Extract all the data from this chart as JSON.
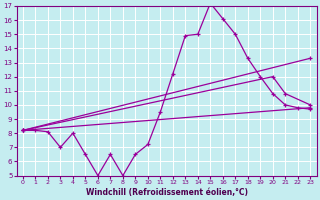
{
  "xlabel": "Windchill (Refroidissement éolien,°C)",
  "xlim": [
    -0.5,
    23.5
  ],
  "ylim": [
    5,
    17
  ],
  "yticks": [
    5,
    6,
    7,
    8,
    9,
    10,
    11,
    12,
    13,
    14,
    15,
    16,
    17
  ],
  "xticks": [
    0,
    1,
    2,
    3,
    4,
    5,
    6,
    7,
    8,
    9,
    10,
    11,
    12,
    13,
    14,
    15,
    16,
    17,
    18,
    19,
    20,
    21,
    22,
    23
  ],
  "bg_color": "#c5edf0",
  "line_color": "#9b009b",
  "grid_color": "#ffffff",
  "series": [
    {
      "x": [
        0,
        1,
        2,
        3,
        4,
        5,
        6,
        7,
        8,
        9,
        10,
        11,
        12,
        13,
        14,
        15,
        16,
        17,
        18,
        19,
        20,
        21,
        22,
        23
      ],
      "y": [
        8.2,
        8.2,
        8.1,
        7.0,
        8.0,
        6.5,
        5.0,
        6.5,
        5.0,
        6.5,
        7.2,
        9.5,
        12.2,
        14.9,
        15.0,
        17.2,
        16.1,
        15.0,
        13.3,
        12.0,
        10.8,
        10.0,
        9.8,
        9.7
      ]
    },
    {
      "x": [
        0,
        23
      ],
      "y": [
        8.2,
        13.3
      ]
    },
    {
      "x": [
        0,
        20,
        21,
        23
      ],
      "y": [
        8.2,
        12.0,
        10.8,
        10.0
      ]
    },
    {
      "x": [
        0,
        23
      ],
      "y": [
        8.2,
        9.8
      ]
    }
  ]
}
